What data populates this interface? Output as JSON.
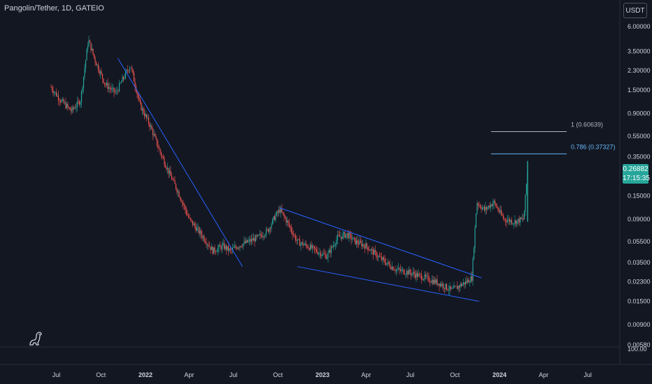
{
  "header": {
    "symbol": "Pangolin/Tether, 1D, GATEIO"
  },
  "price_scale": {
    "currency": "USDT",
    "current_price": "0.26882",
    "countdown": "17:15:35",
    "labels": [
      "6.00000",
      "3.50000",
      "2.30000",
      "1.50000",
      "0.90000",
      "0.55000",
      "0.35000",
      "0.15000",
      "0.09000",
      "0.05500",
      "0.03500",
      "0.02300",
      "0.01500",
      "0.00900",
      "0.00580"
    ],
    "volume_label": "100.00"
  },
  "time_scale": {
    "labels": [
      {
        "text": "Jul",
        "bold": false
      },
      {
        "text": "Oct",
        "bold": false
      },
      {
        "text": "2022",
        "bold": true
      },
      {
        "text": "Apr",
        "bold": false
      },
      {
        "text": "Jul",
        "bold": false
      },
      {
        "text": "Oct",
        "bold": false
      },
      {
        "text": "2023",
        "bold": true
      },
      {
        "text": "Apr",
        "bold": false
      },
      {
        "text": "Jul",
        "bold": false
      },
      {
        "text": "Oct",
        "bold": false
      },
      {
        "text": "2024",
        "bold": true
      },
      {
        "text": "Apr",
        "bold": false
      },
      {
        "text": "Jul",
        "bold": false
      }
    ]
  },
  "fib_levels": [
    {
      "label": "1 (0.60639)",
      "value": 0.60639,
      "color": "#b2b5be"
    },
    {
      "label": "0.786 (0.37327)",
      "value": 0.37327,
      "color": "#64b5f6"
    }
  ],
  "colors": {
    "up": "#26a69a",
    "down": "#ef5350",
    "trendline": "#2962ff",
    "background": "#131722"
  },
  "chart_data": {
    "type": "line",
    "title": "Pangolin/Tether, 1D, GATEIO",
    "y_scale": "log",
    "ylim": [
      0.0058,
      6.0
    ],
    "xlabel": "",
    "ylabel": "",
    "x": [
      "2021-06-20",
      "2021-07-10",
      "2021-08-01",
      "2021-08-20",
      "2021-09-05",
      "2021-09-20",
      "2021-10-10",
      "2021-11-01",
      "2021-11-15",
      "2021-12-01",
      "2021-12-20",
      "2022-01-10",
      "2022-02-01",
      "2022-02-20",
      "2022-03-10",
      "2022-04-01",
      "2022-05-01",
      "2022-05-20",
      "2022-06-10",
      "2022-06-25",
      "2022-07-10",
      "2022-08-01",
      "2022-08-20",
      "2022-09-10",
      "2022-09-25",
      "2022-10-05",
      "2022-10-20",
      "2022-11-10",
      "2022-12-01",
      "2022-12-20",
      "2023-01-10",
      "2023-02-01",
      "2023-02-20",
      "2023-03-10",
      "2023-04-01",
      "2023-05-01",
      "2023-06-01",
      "2023-07-01",
      "2023-08-01",
      "2023-09-01",
      "2023-09-25",
      "2023-10-10",
      "2023-10-25",
      "2023-11-05",
      "2023-11-15",
      "2023-12-01",
      "2023-12-20",
      "2024-01-10",
      "2024-02-01",
      "2024-02-20",
      "2024-02-28"
    ],
    "series": [
      {
        "values": [
          1.6,
          1.2,
          0.95,
          1.2,
          4.5,
          2.8,
          1.7,
          1.4,
          1.9,
          2.6,
          1.1,
          0.7,
          0.38,
          0.24,
          0.16,
          0.09,
          0.06,
          0.045,
          0.05,
          0.045,
          0.05,
          0.055,
          0.06,
          0.07,
          0.095,
          0.11,
          0.085,
          0.055,
          0.05,
          0.045,
          0.04,
          0.06,
          0.065,
          0.055,
          0.05,
          0.038,
          0.03,
          0.028,
          0.025,
          0.022,
          0.019,
          0.021,
          0.023,
          0.025,
          0.13,
          0.11,
          0.13,
          0.09,
          0.085,
          0.09,
          0.27
        ]
      }
    ],
    "trendlines": [
      {
        "from": {
          "x": "2021-11-05",
          "y": 3.0
        },
        "to": {
          "x": "2022-07-20",
          "y": 0.032
        }
      },
      {
        "from": {
          "x": "2022-10-05",
          "y": 0.115
        },
        "to": {
          "x": "2023-11-25",
          "y": 0.025
        }
      },
      {
        "from": {
          "x": "2022-11-10",
          "y": 0.032
        },
        "to": {
          "x": "2023-11-20",
          "y": 0.015
        }
      }
    ],
    "grid": false
  }
}
